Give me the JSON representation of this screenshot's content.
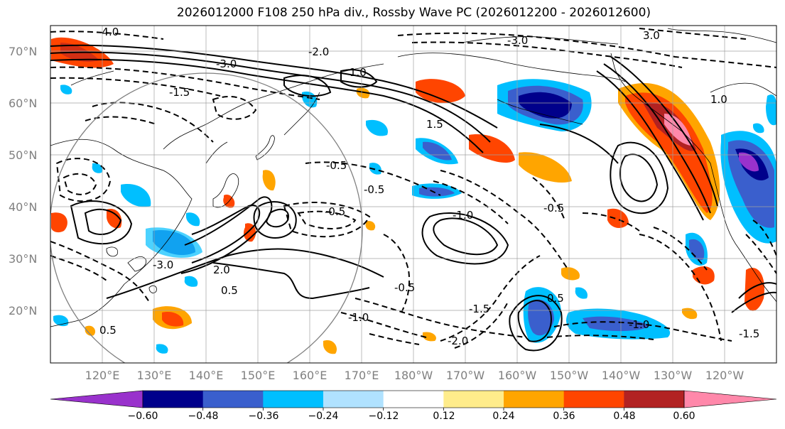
{
  "title": "2026012000 F108 250 hPa div., Rossby Wave PC (2026012200 - 2026012600)",
  "lat_labels": [
    "70°N",
    "60°N",
    "50°N",
    "40°N",
    "30°N",
    "20°N"
  ],
  "lon_labels": [
    "120°E",
    "130°E",
    "140°E",
    "150°E",
    "160°E",
    "170°E",
    "180°W",
    "170°W",
    "160°W",
    "150°W",
    "140°W",
    "130°W",
    "120°W"
  ],
  "colorbar": {
    "tick_labels": [
      "−0.60",
      "−0.48",
      "−0.36",
      "−0.24",
      "−0.12",
      "0.12",
      "0.24",
      "0.36",
      "0.48",
      "0.60"
    ],
    "colors": [
      "#9932cc",
      "#00008b",
      "#3a5fcd",
      "#00bfff",
      "#b0e2ff",
      "#ffffff",
      "#ffec8b",
      "#ffa500",
      "#ff4500",
      "#b22222",
      "#ff88aa"
    ]
  },
  "contour_labels": [
    "-4.0",
    "-3.0",
    "-3.0",
    "3.0",
    "-1.5",
    "-2.0",
    "-3.0",
    "1.0",
    "-0.5",
    "-0.5",
    "0.5",
    "1.5",
    "-1.0",
    "-2.0",
    "-1.5",
    "-1.0",
    "0.5",
    "-0.5",
    "2.0",
    "-1.0",
    "0.5",
    "-0.5",
    "1.0",
    "-0.5",
    "-1.5"
  ]
}
